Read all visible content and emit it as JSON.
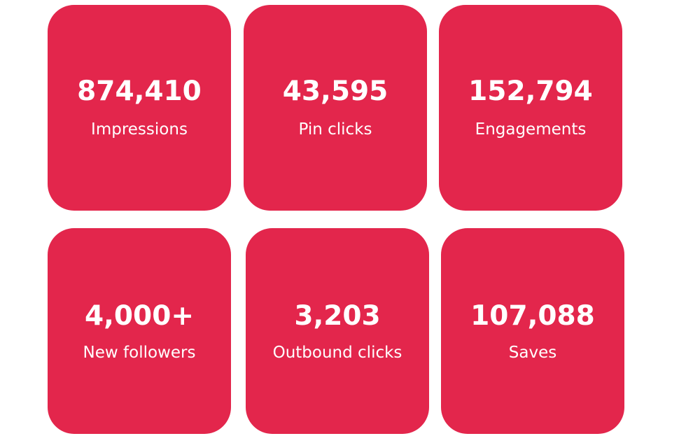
{
  "colors": {
    "card_background": "#e3264c",
    "text": "#ffffff",
    "page_background": "#ffffff"
  },
  "stats": [
    {
      "value": "874,410",
      "label": "Impressions"
    },
    {
      "value": "43,595",
      "label": "Pin clicks"
    },
    {
      "value": "152,794",
      "label": "Engagements"
    },
    {
      "value": "4,000+",
      "label": "New followers"
    },
    {
      "value": "3,203",
      "label": "Outbound clicks"
    },
    {
      "value": "107,088",
      "label": "Saves"
    }
  ]
}
